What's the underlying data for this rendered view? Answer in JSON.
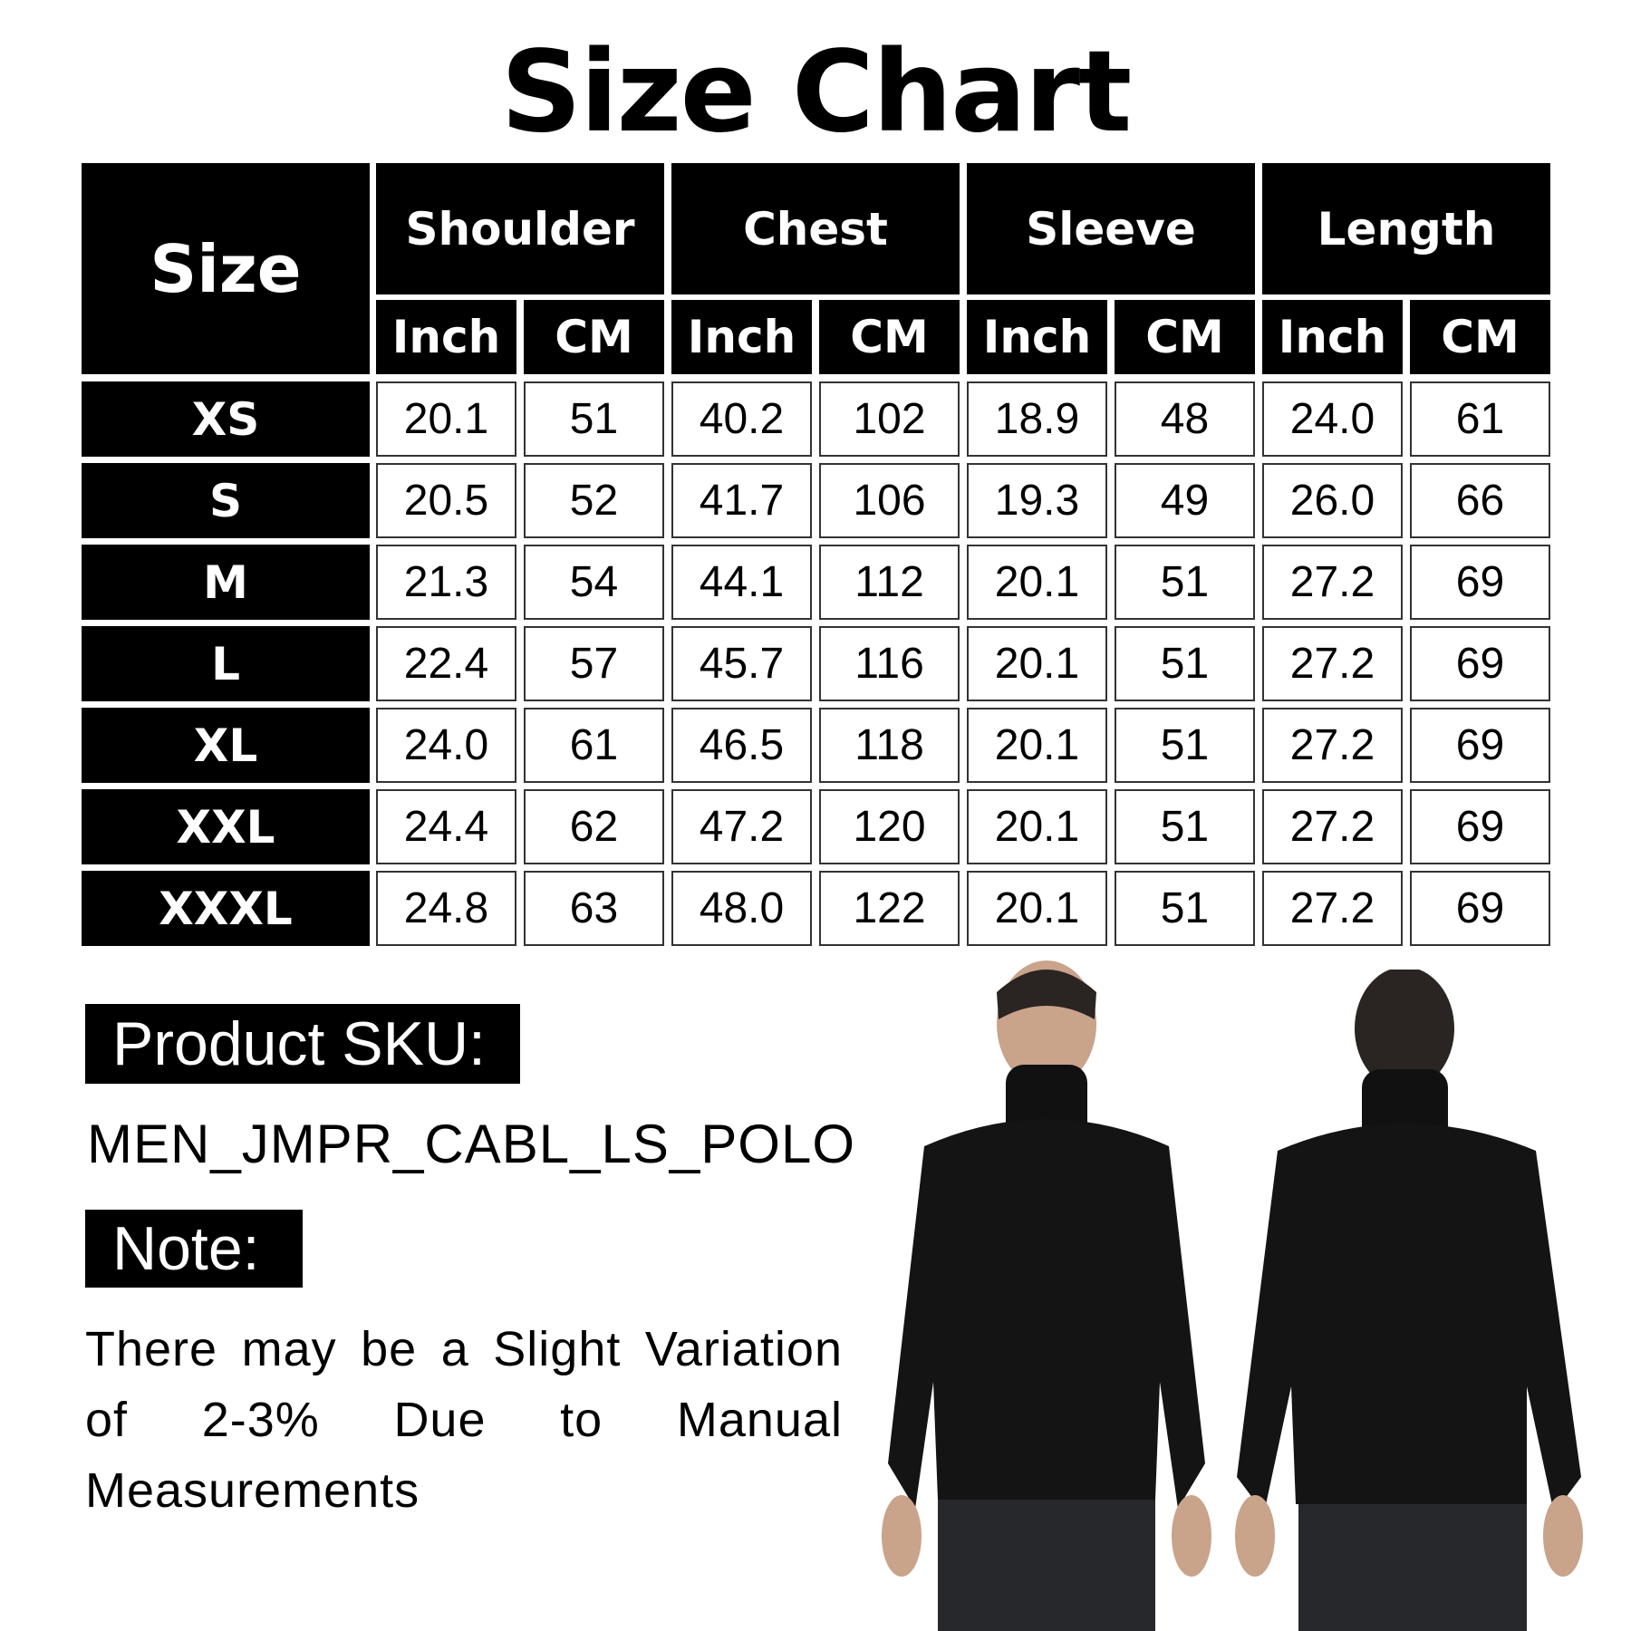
{
  "title": "Size Chart",
  "table": {
    "size_header": "Size",
    "groups": [
      "Shoulder",
      "Chest",
      "Sleeve",
      "Length"
    ],
    "units": [
      "Inch",
      "CM"
    ],
    "rows": [
      {
        "size": "XS",
        "values": [
          "20.1",
          "51",
          "40.2",
          "102",
          "18.9",
          "48",
          "24.0",
          "61"
        ]
      },
      {
        "size": "S",
        "values": [
          "20.5",
          "52",
          "41.7",
          "106",
          "19.3",
          "49",
          "26.0",
          "66"
        ]
      },
      {
        "size": "M",
        "values": [
          "21.3",
          "54",
          "44.1",
          "112",
          "20.1",
          "51",
          "27.2",
          "69"
        ]
      },
      {
        "size": "L",
        "values": [
          "22.4",
          "57",
          "45.7",
          "116",
          "20.1",
          "51",
          "27.2",
          "69"
        ]
      },
      {
        "size": "XL",
        "values": [
          "24.0",
          "61",
          "46.5",
          "118",
          "20.1",
          "51",
          "27.2",
          "69"
        ]
      },
      {
        "size": "XXL",
        "values": [
          "24.4",
          "62",
          "47.2",
          "120",
          "20.1",
          "51",
          "27.2",
          "69"
        ]
      },
      {
        "size": "XXXL",
        "values": [
          "24.8",
          "63",
          "48.0",
          "122",
          "20.1",
          "51",
          "27.2",
          "69"
        ]
      }
    ]
  },
  "sku": {
    "label": "Product SKU:",
    "value": "MEN_JMPR_CABL_LS_POLO"
  },
  "note": {
    "label": "Note:",
    "text": "There may be a Slight Variation of 2-3% Due to Manual Measurements"
  },
  "images": {
    "front": "model-front-black-cable-knit-turtleneck",
    "back": "model-back-black-cable-knit-turtleneck"
  }
}
